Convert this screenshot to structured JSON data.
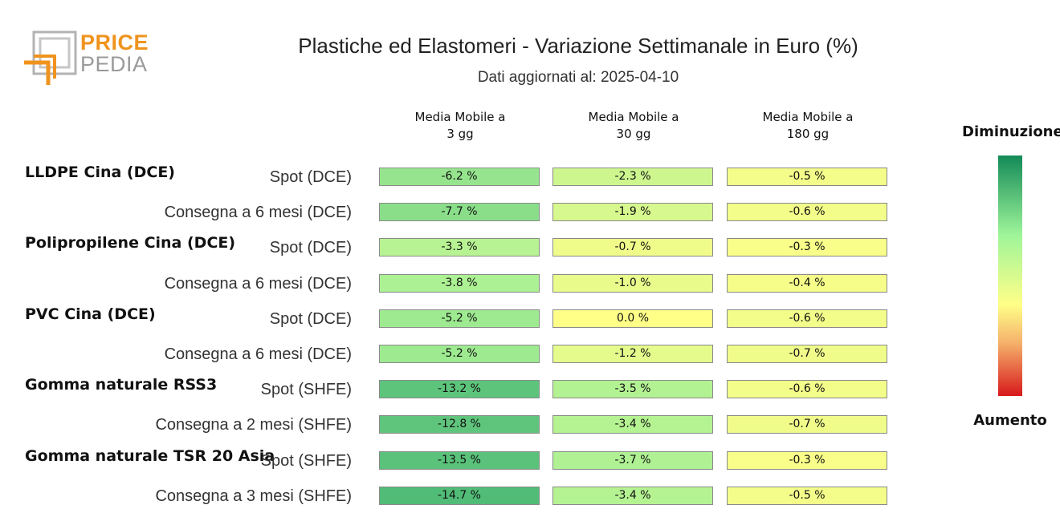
{
  "logo": {
    "line1": "PRICE",
    "line2": "PEDIA"
  },
  "header": {
    "title": "Plastiche ed Elastomeri - Variazione Settimanale in Euro (%)",
    "subtitle": "Dati aggiornati al: 2025-04-10"
  },
  "colors": {
    "brand_orange": "#f0931e",
    "brand_gray": "#9a9a9a",
    "scale_decrease": "#138a58",
    "scale_neutral": "#ffff88",
    "scale_increase": "#d7191c"
  },
  "legend": {
    "top": "Diminuzione",
    "bottom": "Aumento"
  },
  "chart_data": {
    "type": "table",
    "title": "Plastiche ed Elastomeri - Variazione Settimanale in Euro (%)",
    "subtitle": "Dati aggiornati al: 2025-04-10",
    "columns": [
      {
        "line1": "Media Mobile a",
        "line2": "3 gg"
      },
      {
        "line1": "Media Mobile a",
        "line2": "30 gg"
      },
      {
        "line1": "Media Mobile a",
        "line2": "180 gg"
      }
    ],
    "unit": "%",
    "groups": [
      {
        "name": "LLDPE Cina (DCE)",
        "rows": [
          {
            "label": "Spot (DCE)",
            "values": [
              -6.2,
              -2.3,
              -0.5
            ]
          },
          {
            "label": "Consegna a 6 mesi (DCE)",
            "values": [
              -7.7,
              -1.9,
              -0.6
            ]
          }
        ]
      },
      {
        "name": "Polipropilene Cina (DCE)",
        "rows": [
          {
            "label": "Spot (DCE)",
            "values": [
              -3.3,
              -0.7,
              -0.3
            ]
          },
          {
            "label": "Consegna a 6 mesi (DCE)",
            "values": [
              -3.8,
              -1.0,
              -0.4
            ]
          }
        ]
      },
      {
        "name": "PVC Cina (DCE)",
        "rows": [
          {
            "label": "Spot (DCE)",
            "values": [
              -5.2,
              0.0,
              -0.6
            ]
          },
          {
            "label": "Consegna a 6 mesi (DCE)",
            "values": [
              -5.2,
              -1.2,
              -0.7
            ]
          }
        ]
      },
      {
        "name": "Gomma naturale RSS3",
        "rows": [
          {
            "label": "Spot (SHFE)",
            "values": [
              -13.2,
              -3.5,
              -0.6
            ]
          },
          {
            "label": "Consegna a 2 mesi (SHFE)",
            "values": [
              -12.8,
              -3.4,
              -0.7
            ]
          }
        ]
      },
      {
        "name": "Gomma naturale TSR 20 Asia",
        "rows": [
          {
            "label": "Spot (SHFE)",
            "values": [
              -13.5,
              -3.7,
              -0.3
            ]
          },
          {
            "label": "Consegna a 3 mesi (SHFE)",
            "values": [
              -14.7,
              -3.4,
              -0.5
            ]
          }
        ]
      }
    ]
  }
}
